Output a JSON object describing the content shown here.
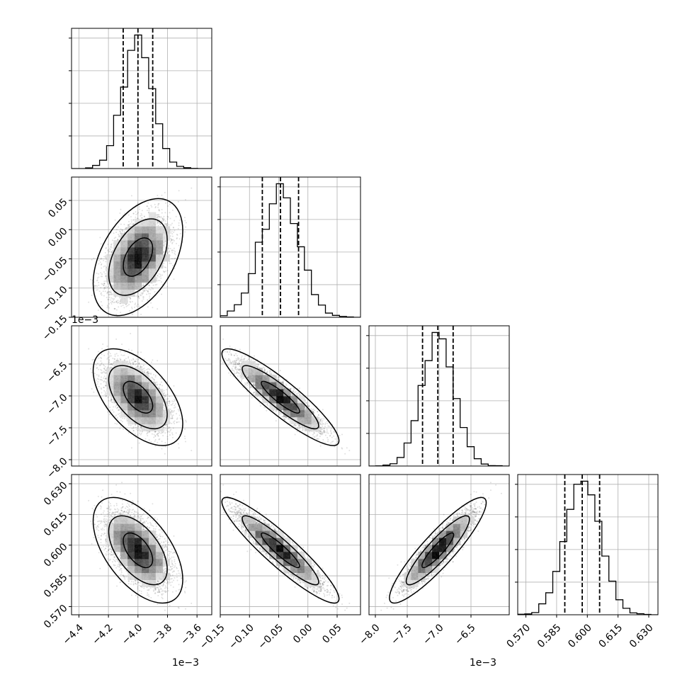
{
  "chart_data": {
    "type": "corner",
    "colors": {
      "line": "#000000",
      "grid": "#b0b0b0",
      "background": "#ffffff"
    },
    "grid": true,
    "parameters": [
      {
        "center": -0.004,
        "sigma": 0.0001,
        "range": [
          -0.00445,
          -0.0035
        ],
        "ticks": [
          -4.4,
          -4.2,
          -4.0,
          -3.8,
          -3.6
        ],
        "tick_labels": [
          "−4.4",
          "−4.2",
          "−4.0",
          "−3.8",
          "−3.6"
        ],
        "tick_scale": 0.001,
        "offset_label": "1e−3",
        "quantiles": [
          -0.0041,
          -0.004,
          -0.0039
        ]
      },
      {
        "center": -0.047,
        "sigma": 0.033,
        "range": [
          -0.15,
          0.09
        ],
        "ticks": [
          -0.15,
          -0.1,
          -0.05,
          0.0,
          0.05
        ],
        "tick_labels": [
          "−0.15",
          "−0.10",
          "−0.05",
          "0.00",
          "0.05"
        ],
        "tick_scale": 1,
        "offset_label": "",
        "quantiles": [
          -0.078,
          -0.047,
          -0.016
        ]
      },
      {
        "center": -0.00702,
        "sigma": 0.00025,
        "range": [
          -0.0081,
          -0.0059
        ],
        "ticks": [
          -8.0,
          -7.5,
          -7.0,
          -6.5
        ],
        "tick_labels": [
          "−8.0",
          "−7.5",
          "−7.0",
          "−6.5"
        ],
        "tick_scale": 0.001,
        "offset_label": "1e−3",
        "quantiles": [
          -0.00726,
          -0.00702,
          -0.00678
        ]
      },
      {
        "center": 0.5975,
        "sigma": 0.0085,
        "range": [
          0.566,
          0.6345
        ],
        "ticks": [
          0.57,
          0.585,
          0.6,
          0.615,
          0.63
        ],
        "tick_labels": [
          "0.570",
          "0.585",
          "0.600",
          "0.615",
          "0.630"
        ],
        "tick_scale": 1,
        "offset_label": "",
        "quantiles": [
          0.589,
          0.5975,
          0.606
        ]
      }
    ],
    "correlations": [
      [
        1.0,
        0.45,
        -0.55,
        -0.55
      ],
      [
        0.45,
        1.0,
        -0.9,
        -0.92
      ],
      [
        -0.55,
        -0.9,
        1.0,
        0.9
      ],
      [
        -0.55,
        -0.92,
        0.9,
        1.0
      ]
    ],
    "histogram_bins": 20,
    "contour_levels": [
      0.39,
      0.86,
      0.99
    ]
  }
}
